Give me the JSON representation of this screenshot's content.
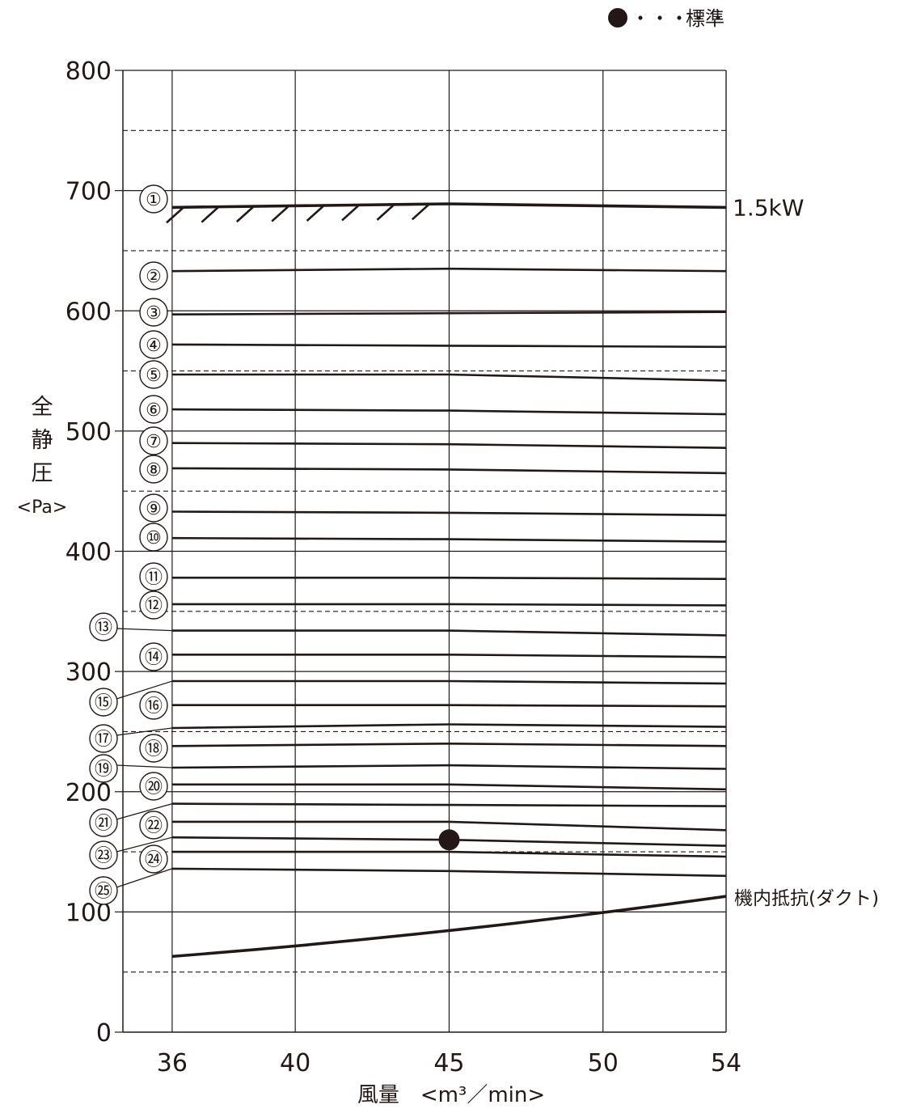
{
  "legend": {
    "dots": "・・・・・",
    "label": "標準",
    "color": "#231815"
  },
  "chart_data": {
    "type": "line",
    "xlabel": "風量　<m³／min>",
    "ylabel": [
      "全",
      "静",
      "圧",
      "<Pa>"
    ],
    "xlim": [
      34.4,
      54
    ],
    "ylim": [
      0,
      800
    ],
    "x_ticks": [
      36,
      40,
      45,
      50,
      54
    ],
    "x_tick_labels": [
      "36",
      "40",
      "45",
      "50",
      "54"
    ],
    "y_ticks": [
      0,
      100,
      200,
      300,
      400,
      500,
      600,
      700,
      800
    ],
    "y_tick_labels": [
      "0",
      "100",
      "200",
      "300",
      "400",
      "500",
      "600",
      "700",
      "800"
    ],
    "y_minor_dashed": [
      50,
      150,
      250,
      350,
      450,
      550,
      650,
      750
    ],
    "grid": true,
    "x": [
      36,
      45,
      54
    ],
    "series": [
      {
        "name": "①",
        "values": [
          686,
          689,
          686
        ]
      },
      {
        "name": "②",
        "values": [
          633,
          635,
          633
        ]
      },
      {
        "name": "③",
        "values": [
          597,
          598,
          599
        ]
      },
      {
        "name": "④",
        "values": [
          572,
          571,
          570
        ]
      },
      {
        "name": "⑤",
        "values": [
          547,
          547,
          542
        ]
      },
      {
        "name": "⑥",
        "values": [
          518,
          517,
          514
        ]
      },
      {
        "name": "⑦",
        "values": [
          490,
          489,
          486
        ]
      },
      {
        "name": "⑧",
        "values": [
          469,
          468,
          465
        ]
      },
      {
        "name": "⑨",
        "values": [
          433,
          432,
          430
        ]
      },
      {
        "name": "⑩",
        "values": [
          411,
          410,
          408
        ]
      },
      {
        "name": "⑪",
        "values": [
          378,
          378,
          377
        ]
      },
      {
        "name": "⑫",
        "values": [
          356,
          356,
          355
        ]
      },
      {
        "name": "⑬",
        "values": [
          334,
          334,
          330
        ]
      },
      {
        "name": "⑭",
        "values": [
          314,
          314,
          312
        ]
      },
      {
        "name": "⑮",
        "values": [
          292,
          292,
          290
        ]
      },
      {
        "name": "⑯",
        "values": [
          272,
          272,
          271
        ]
      },
      {
        "name": "⑰",
        "values": [
          253,
          256,
          254
        ]
      },
      {
        "name": "⑱",
        "values": [
          238,
          240,
          238
        ]
      },
      {
        "name": "⑲",
        "values": [
          220,
          222,
          219
        ]
      },
      {
        "name": "⑳",
        "values": [
          206,
          206,
          202
        ]
      },
      {
        "name": "㉑",
        "values": [
          190,
          189,
          188
        ]
      },
      {
        "name": "㉒",
        "values": [
          175,
          175,
          168
        ]
      },
      {
        "name": "㉓",
        "values": [
          162,
          160,
          155
        ]
      },
      {
        "name": "㉔",
        "values": [
          150,
          150,
          146
        ]
      },
      {
        "name": "㉕",
        "values": [
          136,
          134,
          130
        ]
      }
    ],
    "limit_line": {
      "name": "1.5kW",
      "values": [
        686,
        689,
        686
      ]
    },
    "resistance": {
      "name": "機内抵抗(ダクト)",
      "x": [
        36,
        45,
        54
      ],
      "values": [
        63,
        87,
        113
      ]
    },
    "standard_point": {
      "x": 45,
      "y": 160
    }
  }
}
